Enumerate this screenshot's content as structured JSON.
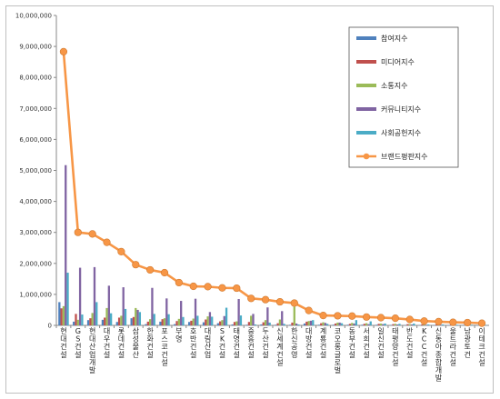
{
  "chart_data": {
    "type": "bar",
    "ylim": [
      0,
      10000000
    ],
    "yticks": [
      0,
      1000000,
      2000000,
      3000000,
      4000000,
      5000000,
      6000000,
      7000000,
      8000000,
      9000000,
      10000000
    ],
    "ytick_labels": [
      "0",
      "1,000,000",
      "2,000,000",
      "3,000,000",
      "4,000,000",
      "5,000,000",
      "6,000,000",
      "7,000,000",
      "8,000,000",
      "9,000,000",
      "10,000,000"
    ],
    "categories": [
      "현대건설",
      "GS건설",
      "현대산업개발",
      "대우건설",
      "롯데건설",
      "삼성물산",
      "한화건설",
      "포스코건설",
      "부영",
      "호반건설",
      "대림산업",
      "SK건설",
      "태영건설",
      "중흥건설",
      "두산건설",
      "신세계건설",
      "한신공영",
      "대방건설",
      "계룡건설",
      "코오롱글로벌",
      "동부건설",
      "서희건설",
      "일신건설",
      "태평양건설",
      "반도건설",
      "KCC건설",
      "신동아종합개발",
      "울트라건설",
      "남광토건",
      "이테크건설"
    ],
    "series": [
      {
        "name": "참여지수",
        "color": "#4F81BD",
        "values": [
          750000,
          120000,
          170000,
          180000,
          110000,
          230000,
          40000,
          120000,
          40000,
          110000,
          100000,
          70000,
          30000,
          20000,
          30000,
          20000,
          20000,
          60000,
          20000,
          20000,
          20000,
          20000,
          20000,
          10000,
          10000,
          10000,
          10000,
          10000,
          10000,
          10000
        ]
      },
      {
        "name": "미디어지수",
        "color": "#C0504D",
        "values": [
          550000,
          370000,
          230000,
          250000,
          250000,
          270000,
          120000,
          200000,
          140000,
          150000,
          190000,
          130000,
          110000,
          110000,
          100000,
          70000,
          90000,
          120000,
          70000,
          60000,
          50000,
          50000,
          50000,
          40000,
          40000,
          30000,
          30000,
          20000,
          20000,
          20000
        ]
      },
      {
        "name": "소통지수",
        "color": "#9BBB59",
        "values": [
          620000,
          180000,
          400000,
          560000,
          310000,
          560000,
          200000,
          230000,
          210000,
          220000,
          290000,
          170000,
          130000,
          310000,
          170000,
          190000,
          600000,
          140000,
          100000,
          90000,
          80000,
          70000,
          60000,
          50000,
          40000,
          40000,
          30000,
          30000,
          20000,
          20000
        ]
      },
      {
        "name": "커뮤니티지수",
        "color": "#8064A2",
        "values": [
          5170000,
          1860000,
          1880000,
          1280000,
          1230000,
          500000,
          1210000,
          870000,
          790000,
          860000,
          430000,
          300000,
          850000,
          370000,
          580000,
          460000,
          60000,
          150000,
          80000,
          90000,
          60000,
          40000,
          40000,
          30000,
          30000,
          20000,
          20000,
          10000,
          10000,
          10000
        ]
      },
      {
        "name": "사회공헌지수",
        "color": "#4BACC6",
        "values": [
          1700000,
          350000,
          750000,
          390000,
          530000,
          430000,
          370000,
          360000,
          270000,
          310000,
          280000,
          570000,
          320000,
          30000,
          90000,
          50000,
          30000,
          170000,
          50000,
          70000,
          170000,
          130000,
          60000,
          50000,
          60000,
          30000,
          30000,
          20000,
          20000,
          10000
        ]
      },
      {
        "name": "브랜드평판지수",
        "color": "#F79646",
        "values": [
          8830000,
          3000000,
          2950000,
          2680000,
          2380000,
          1960000,
          1790000,
          1700000,
          1380000,
          1260000,
          1250000,
          1210000,
          1200000,
          870000,
          830000,
          760000,
          720000,
          480000,
          320000,
          310000,
          300000,
          270000,
          250000,
          230000,
          190000,
          140000,
          120000,
          100000,
          90000,
          70000
        ]
      }
    ],
    "line_series": "브랜드평판지수",
    "legend_position": "top-right",
    "grid": false
  }
}
